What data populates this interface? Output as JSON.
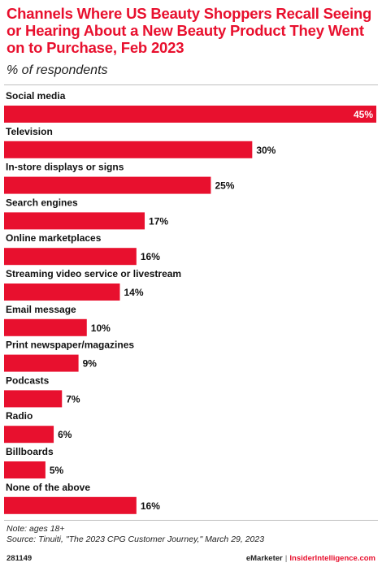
{
  "chart_data": {
    "type": "bar",
    "orientation": "horizontal",
    "title": "Channels Where US Beauty Shoppers Recall Seeing or Hearing About a New Beauty Product They Went on to Purchase, Feb 2023",
    "subtitle": "% of respondents",
    "categories": [
      "Social media",
      "Television",
      "In-store displays or signs",
      "Search engines",
      "Online marketplaces",
      "Streaming video service or livestream",
      "Email message",
      "Print newspaper/magazines",
      "Podcasts",
      "Radio",
      "Billboards",
      "None of the above"
    ],
    "values": [
      45,
      30,
      25,
      17,
      16,
      14,
      10,
      9,
      7,
      6,
      5,
      16
    ],
    "value_labels": [
      "45%",
      "30%",
      "25%",
      "17%",
      "16%",
      "14%",
      "10%",
      "9%",
      "7%",
      "6%",
      "5%",
      "16%"
    ],
    "xlim": [
      0,
      45
    ],
    "bar_color": "#e8102e",
    "grid": false,
    "legend": "none"
  },
  "note": "Note: ages 18+",
  "source": "Source: Tinuiti, \"The 2023 CPG Customer Journey,\" March 29, 2023",
  "footer": {
    "chart_id": "281149",
    "brand": "eMarketer",
    "separator": "|",
    "site": "InsiderIntelligence.com"
  },
  "colors": {
    "accent": "#e8102e",
    "text": "#111111",
    "rule": "#bfbfbf"
  }
}
